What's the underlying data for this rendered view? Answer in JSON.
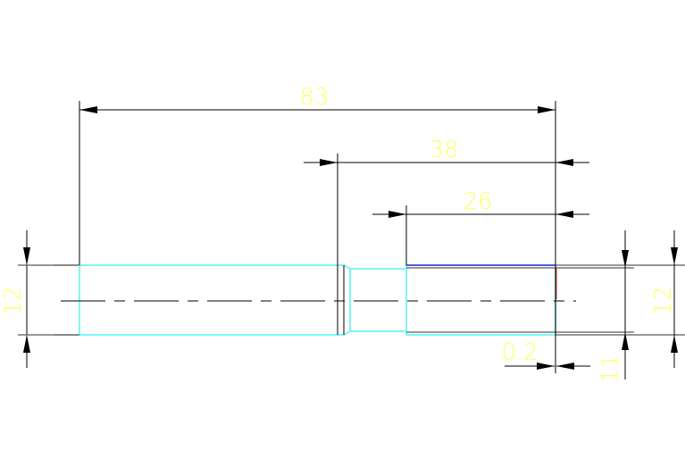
{
  "drawing": {
    "colors": {
      "background": "#ffffff",
      "part_outline": "#7ff6f6",
      "dimension_text": "#ffff66",
      "dimension_lines": "#000000",
      "top_edge": "#3b2bd0",
      "end_edge": "#c0392b"
    },
    "dimensions": {
      "overall_length": "83",
      "length_38": "38",
      "length_26": "26",
      "left_diameter": "12",
      "right_diameter": "12",
      "reduced_diameter": "11",
      "step": "0.2"
    }
  }
}
